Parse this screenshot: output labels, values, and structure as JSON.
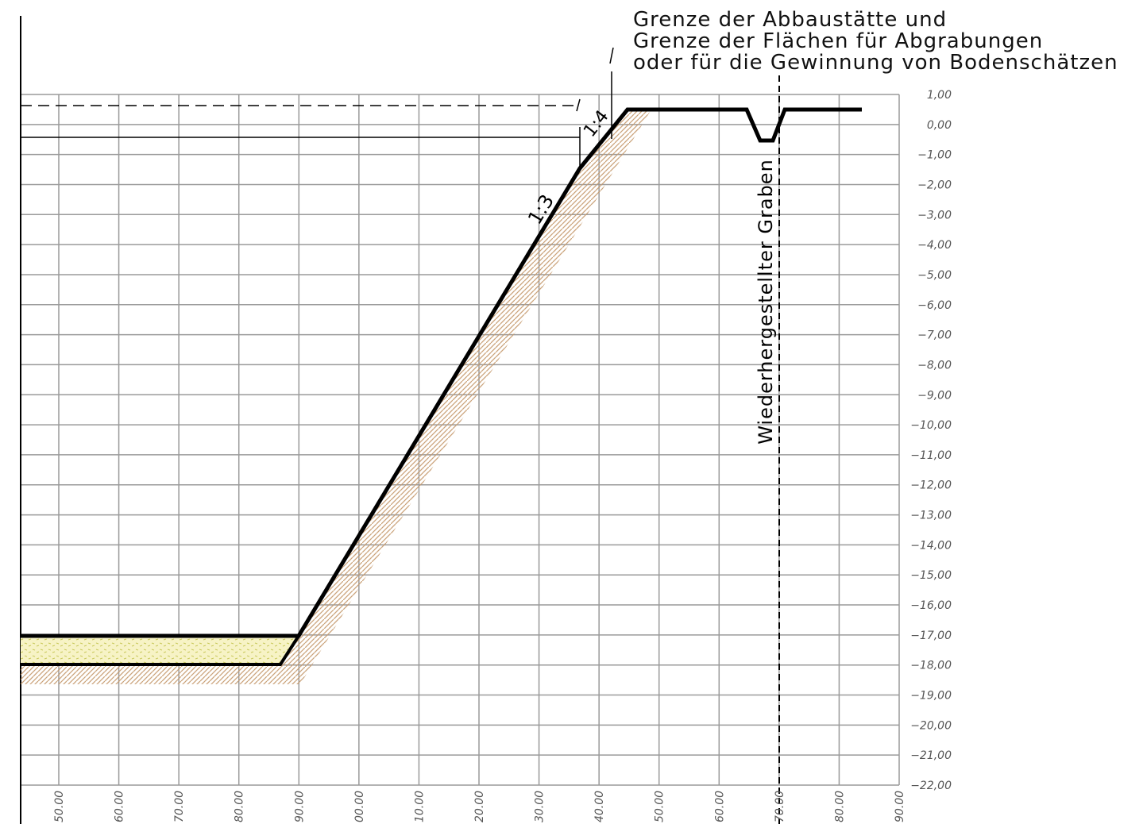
{
  "header": {
    "lines": [
      "Grenze der Abbaustätte und",
      "Grenze der Flächen für Abgrabungen",
      "oder für die Gewinnung von Bodenschätzen"
    ]
  },
  "labels": {
    "ditch": "Wiederhergestellter Graben",
    "slope_main": "1:3",
    "slope_top": "1:4"
  },
  "y_axis": [
    "1,00",
    "0,00",
    "−1,00",
    "−2,00",
    "−3,00",
    "−4,00",
    "−5,00",
    "−6,00",
    "−7,00",
    "−8,00",
    "−9,00",
    "−10,00",
    "−11,00",
    "−12,00",
    "−13,00",
    "−14,00",
    "−15,00",
    "−16,00",
    "−17,00",
    "−18,00",
    "−19,00",
    "−20,00",
    "−21,00",
    "−22,00"
  ],
  "x_axis": [
    "50.00",
    "60.00",
    "70.00",
    "80.00",
    "90.00",
    "00.00",
    "10.00",
    "20.00",
    "30.00",
    "40.00",
    "50.00",
    "60.00",
    "70.00",
    "80.00",
    "90.00"
  ]
}
